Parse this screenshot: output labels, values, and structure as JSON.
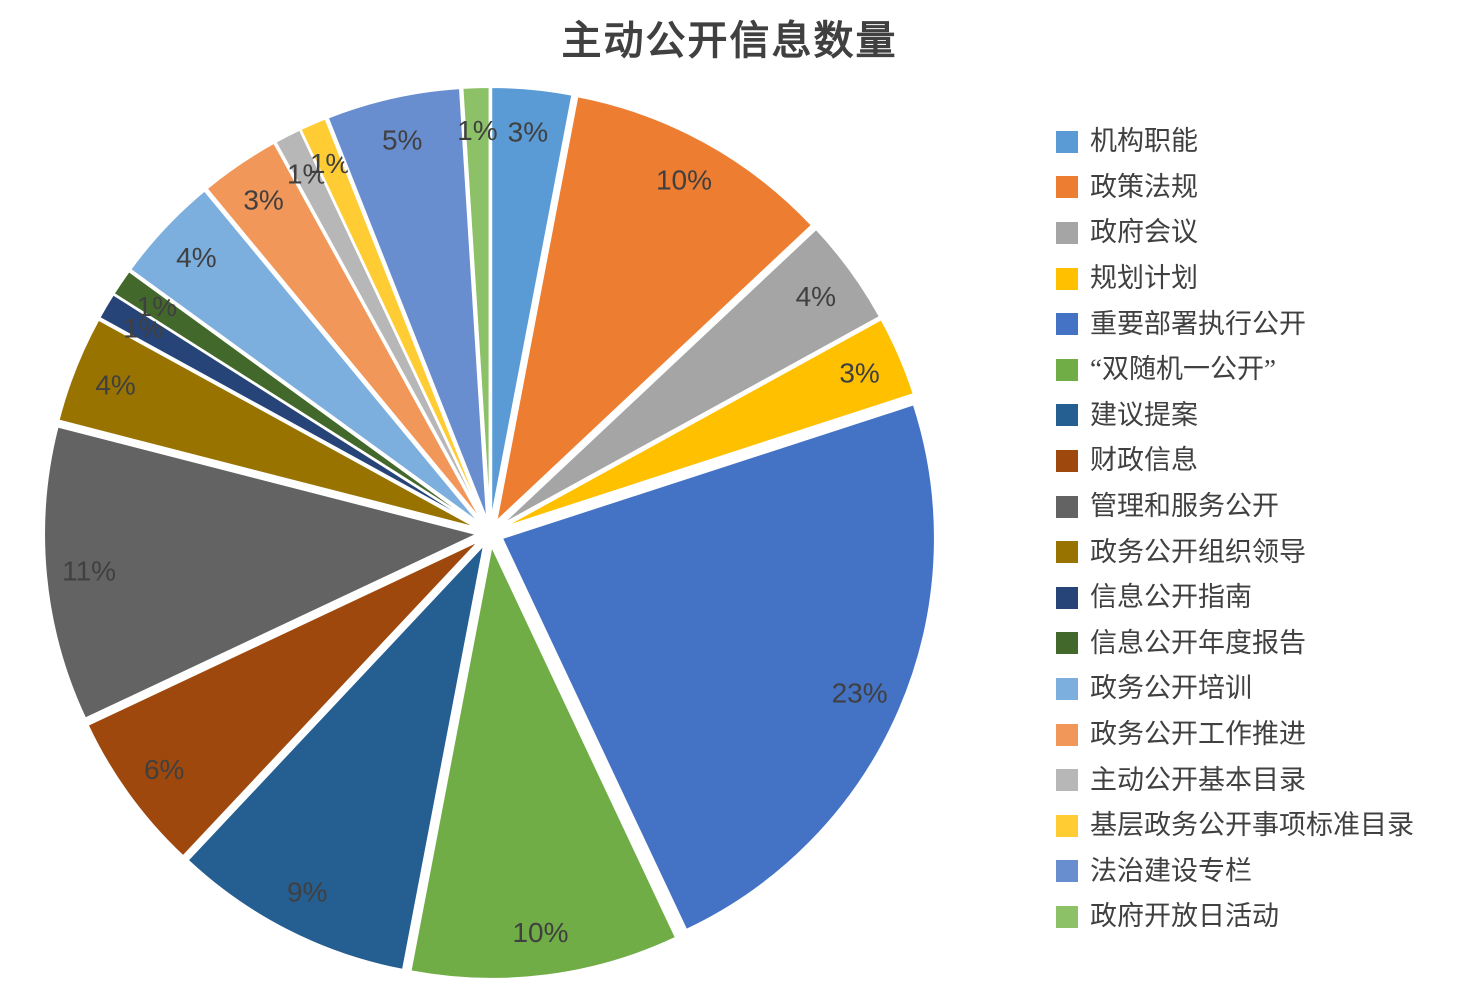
{
  "title": "主动公开信息数量",
  "style": {
    "title_color": "#404040",
    "label_color": "#404040",
    "background": "#FFFFFF",
    "slice_border_color": "#FFFFFF"
  },
  "chart_data": {
    "type": "pie",
    "title": "主动公开信息数量",
    "legend_position": "right",
    "exploded": true,
    "labels": [
      "机构职能",
      "政策法规",
      "政府会议",
      "规划计划",
      "重要部署执行公开",
      "“双随机一公开”",
      "建议提案",
      "财政信息",
      "管理和服务公开",
      "政务公开组织领导",
      "信息公开指南",
      "信息公开年度报告",
      "政务公开培训",
      "政务公开工作推进",
      "主动公开基本目录",
      "基层政务公开事项标准目录",
      "法治建设专栏",
      "政府开放日活动"
    ],
    "values": [
      3,
      10,
      4,
      3,
      23,
      10,
      9,
      6,
      11,
      4,
      1,
      1,
      4,
      3,
      1,
      1,
      5,
      1
    ],
    "value_labels": [
      "3%",
      "10%",
      "4%",
      "3%",
      "23%",
      "10%",
      "9%",
      "6%",
      "11%",
      "4%",
      "1%",
      "1%",
      "4%",
      "3%",
      "1%",
      "1%",
      "5%",
      "1%"
    ],
    "colors": [
      "#5B9BD5",
      "#ED7D31",
      "#A5A5A5",
      "#FFC000",
      "#4472C4",
      "#70AD47",
      "#255E91",
      "#9E480E",
      "#636363",
      "#997300",
      "#264478",
      "#43682B",
      "#7CAFDD",
      "#F1975A",
      "#B7B7B7",
      "#FFCD33",
      "#698ED0",
      "#8CC168"
    ],
    "start_angle_deg": 0,
    "direction": "clockwise"
  }
}
